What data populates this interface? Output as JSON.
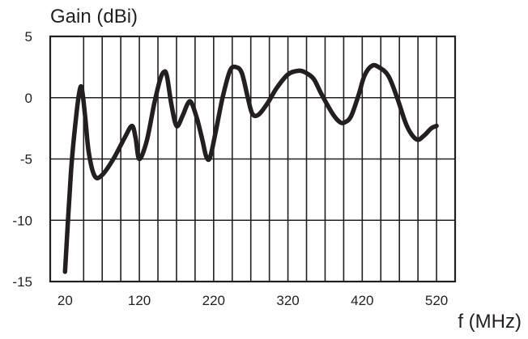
{
  "chart_data": {
    "type": "line",
    "title": "",
    "xlabel": "f (MHz)",
    "ylabel": "Gain (dBi)",
    "xlim": [
      0,
      545
    ],
    "ylim": [
      -15,
      5
    ],
    "x_ticks": [
      20,
      120,
      220,
      320,
      420,
      520
    ],
    "y_ticks": [
      5,
      0,
      -5,
      -10,
      -15
    ],
    "grid": true,
    "colors": {
      "line": "#231f20",
      "grid": "#231f20",
      "background": "#ffffff"
    },
    "series": [
      {
        "x": [
          20,
          28,
          35,
          40,
          43,
          47,
          52,
          60,
          70,
          85,
          100,
          110,
          115,
          120,
          130,
          140,
          148,
          153,
          157,
          163,
          170,
          178,
          185,
          190,
          198,
          205,
          210,
          215,
          222,
          232,
          242,
          250,
          258,
          266,
          272,
          280,
          292,
          305,
          320,
          335,
          345,
          355,
          365,
          380,
          390,
          397,
          405,
          415,
          423,
          433,
          442,
          455,
          467,
          480,
          493,
          503,
          513,
          520
        ],
        "y": [
          -14.2,
          -6,
          -1.5,
          0.7,
          0.6,
          -1.5,
          -4.5,
          -6.4,
          -6.3,
          -5,
          -3.3,
          -2.3,
          -3.3,
          -5,
          -3.5,
          -0.5,
          1.5,
          2.1,
          1.8,
          -0.5,
          -2.3,
          -1.5,
          -0.5,
          -0.4,
          -1.8,
          -3.5,
          -4.8,
          -4.9,
          -3,
          0,
          2.2,
          2.5,
          2,
          0,
          -1.3,
          -1.4,
          -0.5,
          0.8,
          1.9,
          2.2,
          2,
          1.5,
          0.3,
          -1.3,
          -2,
          -2,
          -1.5,
          0.2,
          1.8,
          2.6,
          2.5,
          1.8,
          0,
          -2.3,
          -3.4,
          -3.1,
          -2.5,
          -2.3
        ]
      }
    ]
  }
}
